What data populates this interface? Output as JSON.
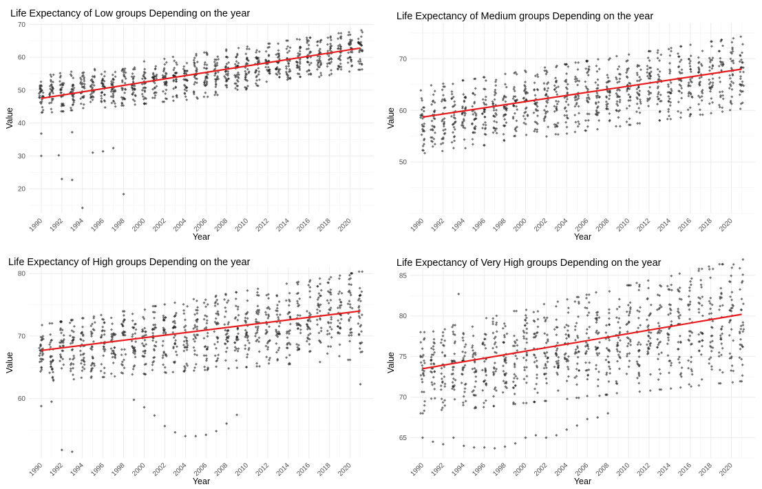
{
  "chart_data": [
    {
      "type": "scatter",
      "title": "Life Expectancy of Low groups Depending on the year",
      "xlabel": "Year",
      "ylabel": "Value",
      "xlim": [
        1988.8,
        2022.3
      ],
      "ylim": [
        12.5,
        70.5
      ],
      "xticks": [
        "1990",
        "1992",
        "1994",
        "1996",
        "1998",
        "2000",
        "2002",
        "2004",
        "2006",
        "2008",
        "2010",
        "2012",
        "2014",
        "2016",
        "2018",
        "2020"
      ],
      "yticks": [
        20,
        30,
        40,
        50,
        60,
        70
      ],
      "grid": true,
      "legend": "none",
      "trend": {
        "x": [
          1990,
          2021
        ],
        "y": [
          47.5,
          62.8
        ]
      },
      "band": {
        "spread_start": 15,
        "spread_end": 12,
        "min_start": 43,
        "min_end": 52
      },
      "outliers": [
        [
          1990,
          30.0
        ],
        [
          1990,
          36.8
        ],
        [
          1991.7,
          30.2
        ],
        [
          1992,
          23.0
        ],
        [
          1993,
          22.7
        ],
        [
          1993,
          37.2
        ],
        [
          1994,
          14.2
        ],
        [
          1995,
          31.0
        ],
        [
          1996,
          31.4
        ],
        [
          1997,
          32.4
        ],
        [
          1998,
          18.4
        ]
      ],
      "point_color": "#1a1a1a",
      "trend_color": "#e8191b"
    },
    {
      "type": "scatter",
      "title": "Life Expectancy of Medium groups Depending on the year",
      "xlabel": "Year",
      "ylabel": "Value",
      "xlim": [
        1988.8,
        2022.3
      ],
      "ylim": [
        40,
        77
      ],
      "xticks": [
        "1990",
        "1992",
        "1994",
        "1996",
        "1998",
        "2000",
        "2002",
        "2004",
        "2006",
        "2008",
        "2010",
        "2012",
        "2014",
        "2016",
        "2018",
        "2020"
      ],
      "yticks": [
        50,
        60,
        70
      ],
      "grid": true,
      "legend": "none",
      "trend": {
        "x": [
          1990,
          2021
        ],
        "y": [
          58.7,
          68.0
        ]
      },
      "band": {
        "spread_start": 13,
        "spread_end": 14,
        "min_start": 42,
        "min_end": 57
      },
      "outliers": [],
      "point_color": "#1a1a1a",
      "trend_color": "#e8191b"
    },
    {
      "type": "scatter",
      "title": "Life Expectancy of High groups Depending on the year",
      "xlabel": "Year",
      "ylabel": "Value",
      "xlim": [
        1988.8,
        2022.3
      ],
      "ylim": [
        50.5,
        81
      ],
      "xticks": [
        "1990",
        "1992",
        "1994",
        "1996",
        "1998",
        "2000",
        "2002",
        "2004",
        "2006",
        "2008",
        "2010",
        "2012",
        "2014",
        "2016",
        "2018",
        "2020"
      ],
      "yticks": [
        60,
        70,
        80
      ],
      "grid": true,
      "legend": "none",
      "trend": {
        "x": [
          1990,
          2021
        ],
        "y": [
          67.7,
          74.0
        ]
      },
      "band": {
        "spread_start": 9,
        "spread_end": 14,
        "min_start": 60,
        "min_end": 65
      },
      "outliers": [
        [
          1990,
          58.8
        ],
        [
          1991,
          59.5
        ],
        [
          1992,
          51.8
        ],
        [
          1993,
          51.5
        ],
        [
          1999,
          59.8
        ],
        [
          2000,
          58.6
        ],
        [
          2001,
          57.3
        ],
        [
          2002,
          55.6
        ],
        [
          2003,
          54.6
        ],
        [
          2004,
          54.0
        ],
        [
          2005,
          54.0
        ],
        [
          2006,
          54.2
        ],
        [
          2007,
          54.8
        ],
        [
          2008,
          56.0
        ],
        [
          2009,
          57.4
        ],
        [
          2021,
          62.3
        ]
      ],
      "point_color": "#1a1a1a",
      "trend_color": "#e8191b"
    },
    {
      "type": "scatter",
      "title": "Life Expectancy of Very High groups Depending on the year",
      "xlabel": "Year",
      "ylabel": "Value",
      "xlim": [
        1988.8,
        2022.3
      ],
      "ylim": [
        62.5,
        86
      ],
      "xticks": [
        "1990",
        "1992",
        "1994",
        "1996",
        "1998",
        "2000",
        "2002",
        "2004",
        "2006",
        "2008",
        "2010",
        "2012",
        "2014",
        "2016",
        "2018",
        "2020"
      ],
      "yticks": [
        65,
        70,
        75,
        80,
        85
      ],
      "grid": true,
      "legend": "none",
      "trend": {
        "x": [
          1990,
          2021
        ],
        "y": [
          73.5,
          80.2
        ]
      },
      "band": {
        "spread_start": 10,
        "spread_end": 15,
        "min_start": 68,
        "min_end": 69
      },
      "outliers": [
        [
          1990,
          65.0
        ],
        [
          1991,
          64.5
        ],
        [
          1992,
          64.2
        ],
        [
          1993,
          65.0
        ],
        [
          1993.5,
          82.7
        ],
        [
          1994,
          64.0
        ],
        [
          1995,
          63.8
        ],
        [
          1996,
          63.8
        ],
        [
          1997,
          63.7
        ],
        [
          1998,
          63.9
        ],
        [
          1999,
          64.3
        ],
        [
          2000,
          65.0
        ],
        [
          2001,
          65.3
        ],
        [
          2002,
          65.0
        ],
        [
          2003,
          65.3
        ],
        [
          2004,
          66.0
        ],
        [
          2005,
          66.5
        ],
        [
          2006,
          67.3
        ],
        [
          2007,
          67.5
        ],
        [
          2008,
          68.0
        ]
      ],
      "point_color": "#1a1a1a",
      "trend_color": "#e8191b"
    }
  ]
}
